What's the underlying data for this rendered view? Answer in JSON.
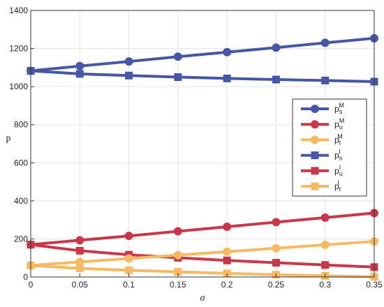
{
  "chart_data": {
    "type": "line",
    "xlabel": "σ",
    "ylabel": "p",
    "xlim": [
      0,
      0.35
    ],
    "ylim": [
      0,
      1400
    ],
    "x": [
      0,
      0.05,
      0.1,
      0.15,
      0.2,
      0.25,
      0.3,
      0.35
    ],
    "x_ticks": [
      "0",
      "0.05",
      "0.1",
      "0.15",
      "0.2",
      "0.25",
      "0.3",
      "0.35"
    ],
    "y_ticks": [
      "0",
      "200",
      "400",
      "600",
      "800",
      "1000",
      "1200",
      "1400"
    ],
    "x_tick_values": [
      0,
      0.05,
      0.1,
      0.15,
      0.2,
      0.25,
      0.3,
      0.35
    ],
    "y_tick_values": [
      0,
      200,
      400,
      600,
      800,
      1000,
      1200,
      1400
    ],
    "grid": true,
    "legend_position": "right-middle",
    "series": [
      {
        "name": "p_s^M",
        "base": "p",
        "sub": "s",
        "sup": "M",
        "color": "#4857a5",
        "marker": "circle",
        "values": [
          1083,
          1108,
          1132,
          1157,
          1181,
          1205,
          1230,
          1254
        ]
      },
      {
        "name": "p_u^M",
        "base": "p",
        "sub": "u",
        "sup": "M",
        "color": "#c8374a",
        "marker": "circle",
        "values": [
          170,
          193,
          216,
          240,
          264,
          288,
          312,
          336
        ]
      },
      {
        "name": "p_t^M",
        "base": "p",
        "sub": "t",
        "sup": "M",
        "color": "#f7b963",
        "marker": "circle",
        "values": [
          61,
          79,
          97,
          115,
          133,
          151,
          169,
          187
        ]
      },
      {
        "name": "p_s^I",
        "base": "p",
        "sub": "s",
        "sup": "I",
        "color": "#4857a5",
        "marker": "square",
        "values": [
          1083,
          1067,
          1058,
          1050,
          1043,
          1037,
          1032,
          1026
        ]
      },
      {
        "name": "p_u^I",
        "base": "p",
        "sub": "u",
        "sup": "I",
        "color": "#c8374a",
        "marker": "square",
        "values": [
          170,
          138,
          117,
          101,
          87,
          75,
          63,
          52
        ]
      },
      {
        "name": "p_t^I",
        "base": "p",
        "sub": "t",
        "sup": "I",
        "color": "#f7b963",
        "marker": "square",
        "values": [
          61,
          45,
          35,
          27,
          19,
          12,
          6,
          1
        ]
      }
    ]
  }
}
